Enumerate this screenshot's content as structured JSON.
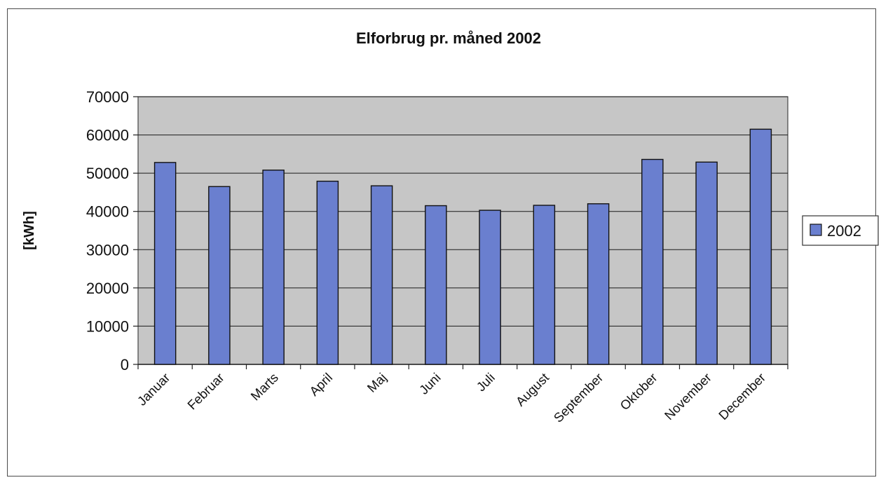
{
  "chart_data": {
    "type": "bar",
    "title": "Elforbrug pr. måned 2002",
    "xlabel": "",
    "ylabel": "[kWh]",
    "categories": [
      "Januar",
      "Februar",
      "Marts",
      "April",
      "Maj",
      "Juni",
      "Juli",
      "August",
      "September",
      "Oktober",
      "November",
      "December"
    ],
    "series": [
      {
        "name": "2002",
        "values": [
          52800,
          46500,
          50800,
          47900,
          46700,
          41500,
          40300,
          41600,
          42000,
          53600,
          52900,
          61500
        ]
      }
    ],
    "ylim": [
      0,
      70000
    ],
    "yticks": [
      "0",
      "10000",
      "20000",
      "30000",
      "40000",
      "50000",
      "60000",
      "70000"
    ],
    "grid": true,
    "legend_position": "right",
    "colors": {
      "bar_fill": "#6a7fcf",
      "bar_stroke": "#111111",
      "plot_background": "#c6c6c6",
      "gridline": "#1a1a1a"
    }
  }
}
